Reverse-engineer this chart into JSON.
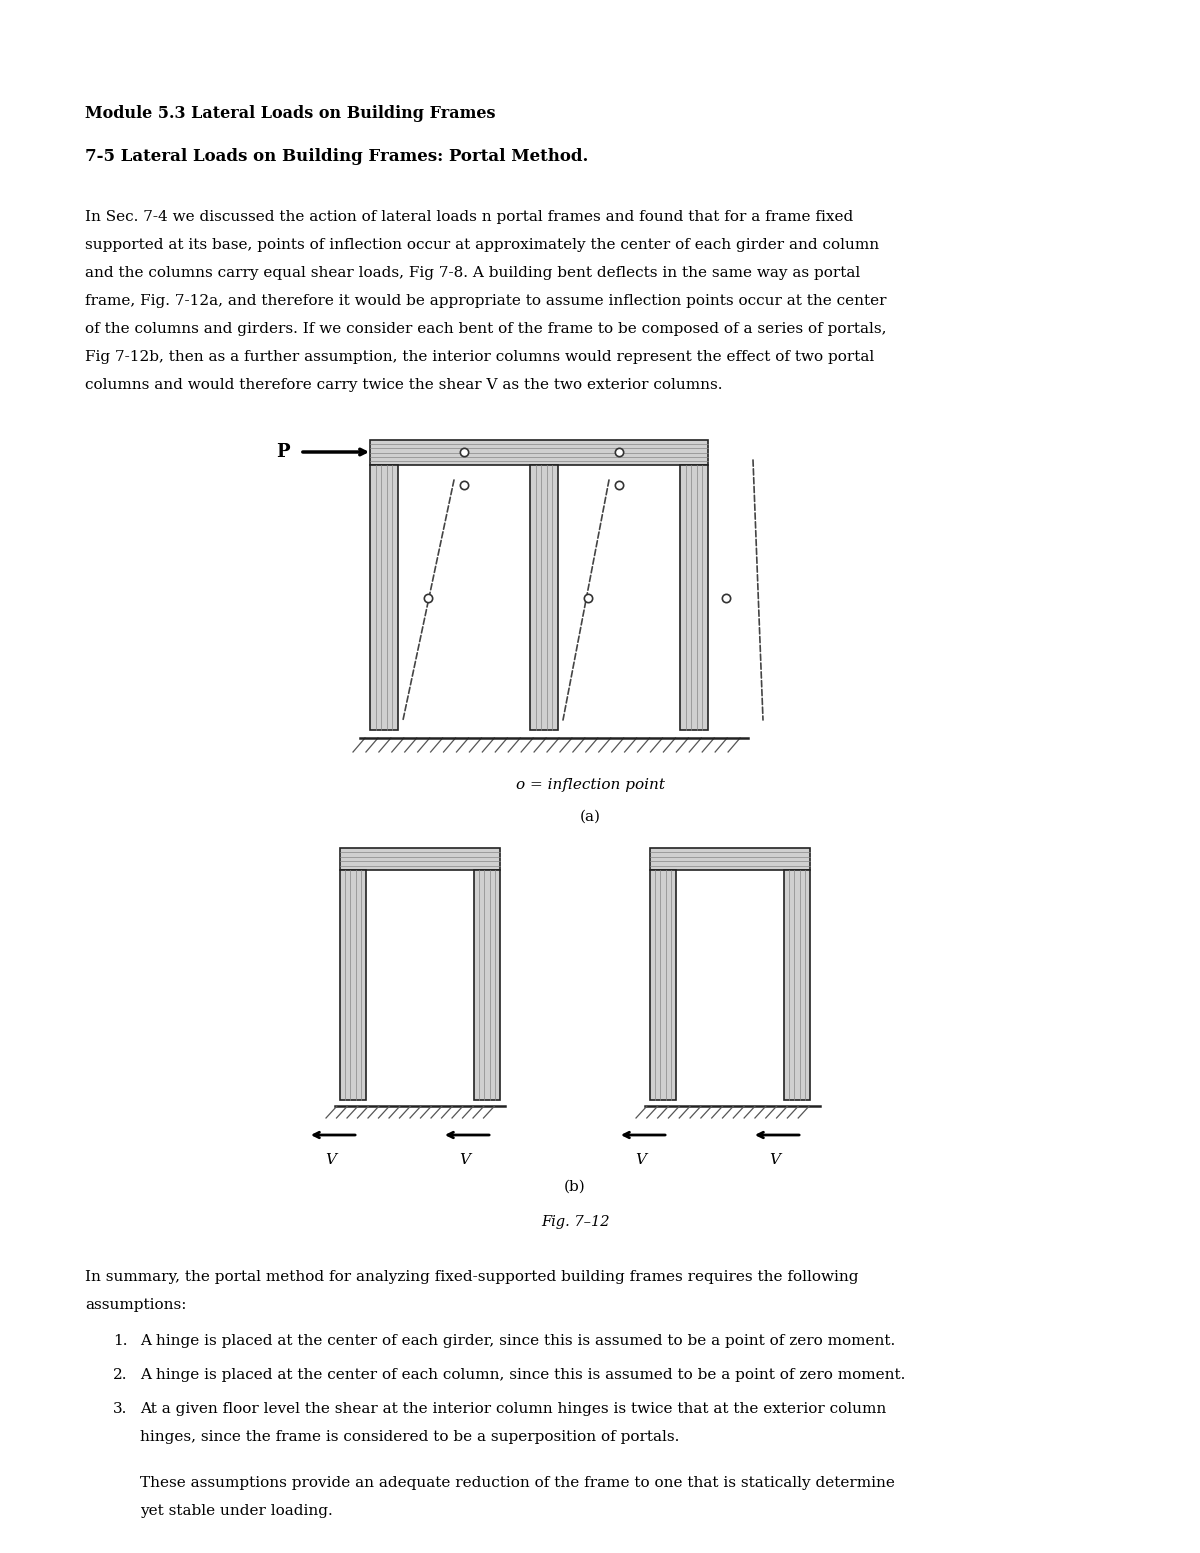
{
  "bg_color": "#ffffff",
  "title1": "Module 5.3 Lateral Loads on Building Frames",
  "title2": "7-5 Lateral Loads on Building Frames: Portal Method.",
  "para1_lines": [
    "In Sec. 7-4 we discussed the action of lateral loads n portal frames and found that for a frame fixed",
    "supported at its base, points of inflection occur at approximately the center of each girder and column",
    "and the columns carry equal shear loads, Fig 7-8. A building bent deflects in the same way as portal",
    "frame, Fig. 7-12a, and therefore it would be appropriate to assume inflection points occur at the center",
    "of the columns and girders. If we consider each bent of the frame to be composed of a series of portals,",
    "Fig 7-12b, then as a further assumption, the interior columns would represent the effect of two portal",
    "columns and would therefore carry twice the shear V as the two exterior columns."
  ],
  "caption_a": "o = inflection point",
  "label_a": "(a)",
  "label_b": "(b)",
  "fig_label": "Fig. 7–12",
  "summary_line1": "In summary, the portal method for analyzing fixed-supported building frames requires the following",
  "summary_line2": "assumptions:",
  "list_items": [
    "A hinge is placed at the center of each girder, since this is assumed to be a point of zero moment.",
    "A hinge is placed at the center of each column, since this is assumed to be a point of zero moment.",
    [
      "At a given floor level the shear at the interior column hinges is twice that at the exterior column",
      "hinges, since the frame is considered to be a superposition of portals."
    ]
  ],
  "final_para_lines": [
    "These assumptions provide an adequate reduction of the frame to one that is statically determine",
    "yet stable under loading."
  ],
  "text_color": "#000000"
}
